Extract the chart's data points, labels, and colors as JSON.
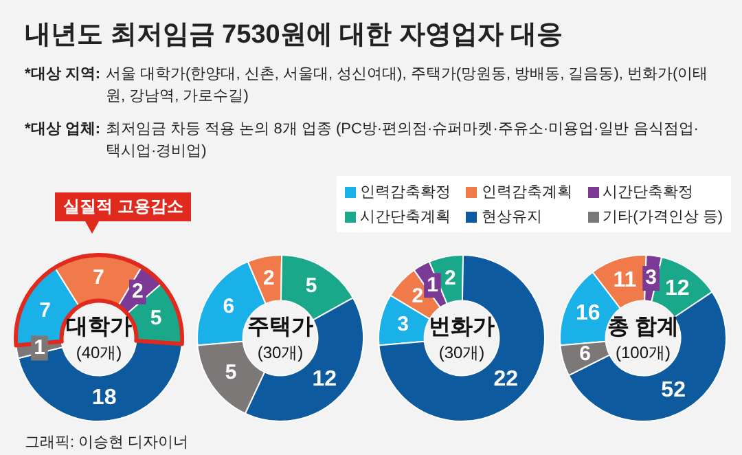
{
  "chart_data": [
    {
      "type": "other",
      "title": "내년도 최저임금 7530원에 대한 자영업자 대응",
      "annotations": [
        "*대상 지역: 서울 대학가(한양대, 신촌, 서울대, 성신여대), 주택가(망원동, 방배동, 길음동), 번화가(이태원, 강남역, 가로수길)",
        "*대상 업체: 최저임금 차등 적용 논의 8개 업종 (PC방·편의점·슈퍼마켓·주유소·미용업·일반 음식점업·택시업·경비업)",
        "그래픽: 이승현 디자이너"
      ]
    },
    {
      "type": "donut",
      "title": "대학가",
      "subtitle": "(40개)",
      "categories": [
        "인력감축확정",
        "인력감축계획",
        "시간단축확정",
        "시간단축계획",
        "현상유지",
        "기타(가격인상 등)"
      ],
      "values": [
        7,
        7,
        2,
        5,
        18,
        1
      ],
      "colors": [
        "#1ab0e8",
        "#f07a4a",
        "#7b3a96",
        "#1aa88a",
        "#0d5a9e",
        "#7d7878"
      ],
      "data_labels": true,
      "legend": "top right",
      "annotations": [
        "실질적 고용감소"
      ]
    },
    {
      "type": "donut",
      "title": "주택가",
      "subtitle": "(30개)",
      "categories": [
        null,
        null,
        null,
        null,
        null,
        null
      ],
      "values": [
        6,
        2,
        null,
        5,
        12,
        5
      ],
      "colors": [
        "#1ab0e8",
        "#f07a4a",
        "#7b3a96",
        "#1aa88a",
        "#0d5a9e",
        "#7d7878"
      ],
      "data_labels": true
    },
    {
      "type": "donut",
      "title": "번화가",
      "subtitle": "(30개)",
      "categories": [
        null,
        null,
        null,
        null,
        null,
        null
      ],
      "values": [
        3,
        2,
        1,
        2,
        22,
        null
      ],
      "colors": [
        "#1ab0e8",
        "#f07a4a",
        "#7b3a96",
        "#1aa88a",
        "#0d5a9e",
        "#7d7878"
      ],
      "data_labels": true
    },
    {
      "type": "donut",
      "title": "총 합계",
      "subtitle": "(100개)",
      "categories": [
        null,
        null,
        null,
        null,
        null,
        null
      ],
      "values": [
        16,
        11,
        3,
        12,
        52,
        6
      ],
      "colors": [
        "#1ab0e8",
        "#f07a4a",
        "#7b3a96",
        "#1aa88a",
        "#0d5a9e",
        "#7d7878"
      ],
      "data_labels": true
    }
  ]
}
